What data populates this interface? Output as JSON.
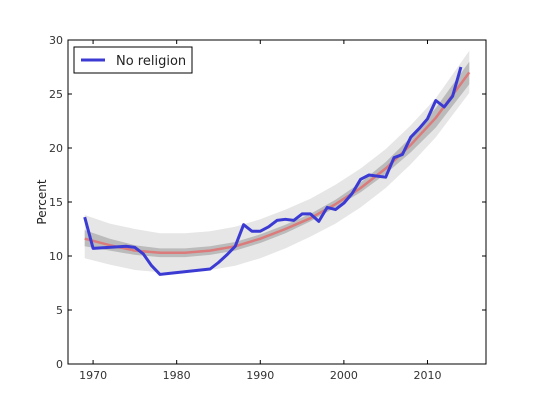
{
  "chart_data": {
    "type": "line",
    "title": "",
    "xlabel": "",
    "ylabel": "Percent",
    "xlim": [
      1967,
      2017
    ],
    "ylim": [
      0,
      30
    ],
    "xticks": [
      "1970",
      "1980",
      "1990",
      "2000",
      "2010"
    ],
    "xtick_values": [
      1970,
      1980,
      1990,
      2000,
      2010
    ],
    "yticks": [
      "0",
      "5",
      "10",
      "15",
      "20",
      "25",
      "30"
    ],
    "ytick_values": [
      0,
      5,
      10,
      15,
      20,
      25,
      30
    ],
    "grid": false,
    "legend": {
      "position": "top-left",
      "entries": [
        "No religion"
      ]
    },
    "series": [
      {
        "name": "No religion",
        "color": "#3b3bd4",
        "x": [
          1969,
          1970,
          1974,
          1975,
          1976,
          1977,
          1978,
          1984,
          1985,
          1986,
          1987,
          1988,
          1989,
          1990,
          1991,
          1992,
          1993,
          1994,
          1995,
          1996,
          1997,
          1998,
          1999,
          2000,
          2001,
          2002,
          2003,
          2004,
          2005,
          2006,
          2007,
          2008,
          2009,
          2010,
          2011,
          2012,
          2013,
          2014
        ],
        "y": [
          13.6,
          10.7,
          10.9,
          10.8,
          10.2,
          9.1,
          8.3,
          8.8,
          9.4,
          10.1,
          10.9,
          12.9,
          12.3,
          12.3,
          12.7,
          13.3,
          13.4,
          13.3,
          13.9,
          13.9,
          13.2,
          14.5,
          14.3,
          14.9,
          15.8,
          17.1,
          17.5,
          17.4,
          17.3,
          19.1,
          19.4,
          21.0,
          21.8,
          22.7,
          24.4,
          23.8,
          24.8,
          27.5
        ]
      }
    ],
    "fit": {
      "color": "#e07070",
      "x": [
        1969,
        1972,
        1975,
        1978,
        1981,
        1984,
        1987,
        1990,
        1993,
        1996,
        1999,
        2002,
        2005,
        2008,
        2011,
        2015
      ],
      "y": [
        11.6,
        11.0,
        10.5,
        10.3,
        10.3,
        10.5,
        10.9,
        11.6,
        12.5,
        13.5,
        14.8,
        16.3,
        18.1,
        20.3,
        22.8,
        27.0
      ]
    },
    "confidence_band": {
      "color": "#b0b0b0",
      "x": [
        1969,
        1972,
        1975,
        1978,
        1981,
        1984,
        1987,
        1990,
        1993,
        1996,
        1999,
        2002,
        2005,
        2008,
        2011,
        2015
      ],
      "lower": [
        10.9,
        10.5,
        10.1,
        9.9,
        9.9,
        10.1,
        10.5,
        11.2,
        12.1,
        13.2,
        14.5,
        15.9,
        17.6,
        19.6,
        21.9,
        25.9
      ],
      "upper": [
        12.4,
        11.6,
        11.0,
        10.7,
        10.7,
        10.9,
        11.3,
        12.0,
        12.9,
        13.9,
        15.2,
        16.8,
        18.7,
        21.0,
        23.7,
        28.0
      ]
    },
    "prediction_band": {
      "color": "#e6e6e6",
      "x": [
        1969,
        1972,
        1975,
        1978,
        1981,
        1984,
        1987,
        1990,
        1993,
        1996,
        1999,
        2002,
        2005,
        2008,
        2011,
        2015
      ],
      "lower": [
        9.8,
        9.2,
        8.7,
        8.5,
        8.5,
        8.7,
        9.1,
        9.8,
        10.7,
        11.8,
        13.0,
        14.5,
        16.3,
        18.5,
        21.0,
        25.1
      ],
      "upper": [
        13.8,
        13.0,
        12.5,
        12.1,
        12.1,
        12.3,
        12.7,
        13.4,
        14.3,
        15.3,
        16.6,
        18.1,
        19.9,
        22.1,
        24.6,
        29.0
      ]
    }
  }
}
